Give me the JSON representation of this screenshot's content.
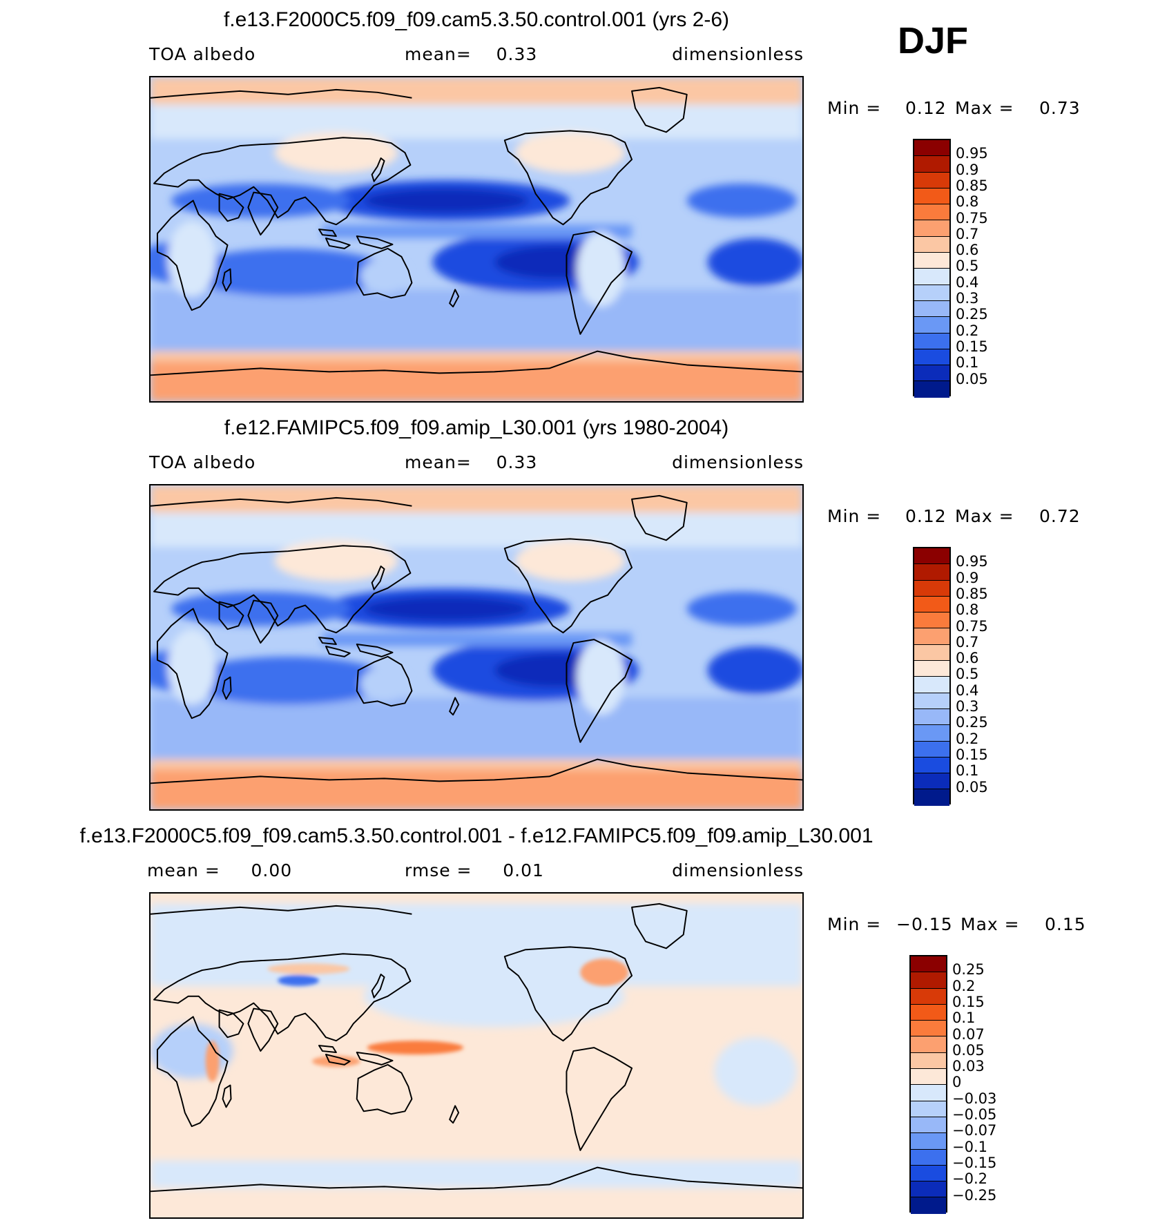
{
  "season": "DJF",
  "panels": [
    {
      "title": "f.e13.F2000C5.f09_f09.cam5.3.50.control.001 (yrs 2-6)",
      "left_label": "TOA albedo",
      "center_label": "mean=    0.33",
      "right_label": "dimensionless",
      "min_label": "Min =",
      "min_value": "0.12",
      "max_label": "Max =",
      "max_value": "0.73",
      "scale": "abs"
    },
    {
      "title": "f.e12.FAMIPC5.f09_f09.amip_L30.001 (yrs 1980-2004)",
      "left_label": "TOA albedo",
      "center_label": "mean=    0.33",
      "right_label": "dimensionless",
      "min_label": "Min =",
      "min_value": "0.12",
      "max_label": "Max =",
      "max_value": "0.72",
      "scale": "abs"
    },
    {
      "title": "f.e13.F2000C5.f09_f09.cam5.3.50.control.001 - f.e12.FAMIPC5.f09_f09.amip_L30.001",
      "left_label": "mean =     0.00",
      "center_label": "rmse =     0.01",
      "right_label": "dimensionless",
      "min_label": "Min =",
      "min_value": "−0.15",
      "max_label": "Max =",
      "max_value": "0.15",
      "scale": "diff"
    }
  ],
  "colorbars": {
    "abs": {
      "colors": [
        "#8b0000",
        "#b01a00",
        "#d83a08",
        "#f25a18",
        "#fa7b3c",
        "#fca070",
        "#fbc7a4",
        "#fde8d8",
        "#d8e8fb",
        "#b6d0fa",
        "#98b8f8",
        "#6a98f5",
        "#3c70ee",
        "#1a4ce0",
        "#0b2cba",
        "#001a8c"
      ],
      "labels": [
        "0.95",
        "0.9",
        "0.85",
        "0.8",
        "0.75",
        "0.7",
        "0.6",
        "0.5",
        "0.4",
        "0.3",
        "0.25",
        "0.2",
        "0.15",
        "0.1",
        "0.05"
      ]
    },
    "diff": {
      "colors": [
        "#8b0000",
        "#b01a00",
        "#d83a08",
        "#f25a18",
        "#fa7b3c",
        "#fca070",
        "#fbc7a4",
        "#fde8d8",
        "#d8e8fb",
        "#b6d0fa",
        "#98b8f8",
        "#6a98f5",
        "#3c70ee",
        "#1a4ce0",
        "#0b2cba",
        "#001a8c"
      ],
      "labels": [
        "0.25",
        "0.2",
        "0.15",
        "0.1",
        "0.07",
        "0.05",
        "0.03",
        "0",
        "−0.03",
        "−0.05",
        "−0.07",
        "−0.1",
        "−0.15",
        "−0.2",
        "−0.25"
      ]
    }
  }
}
